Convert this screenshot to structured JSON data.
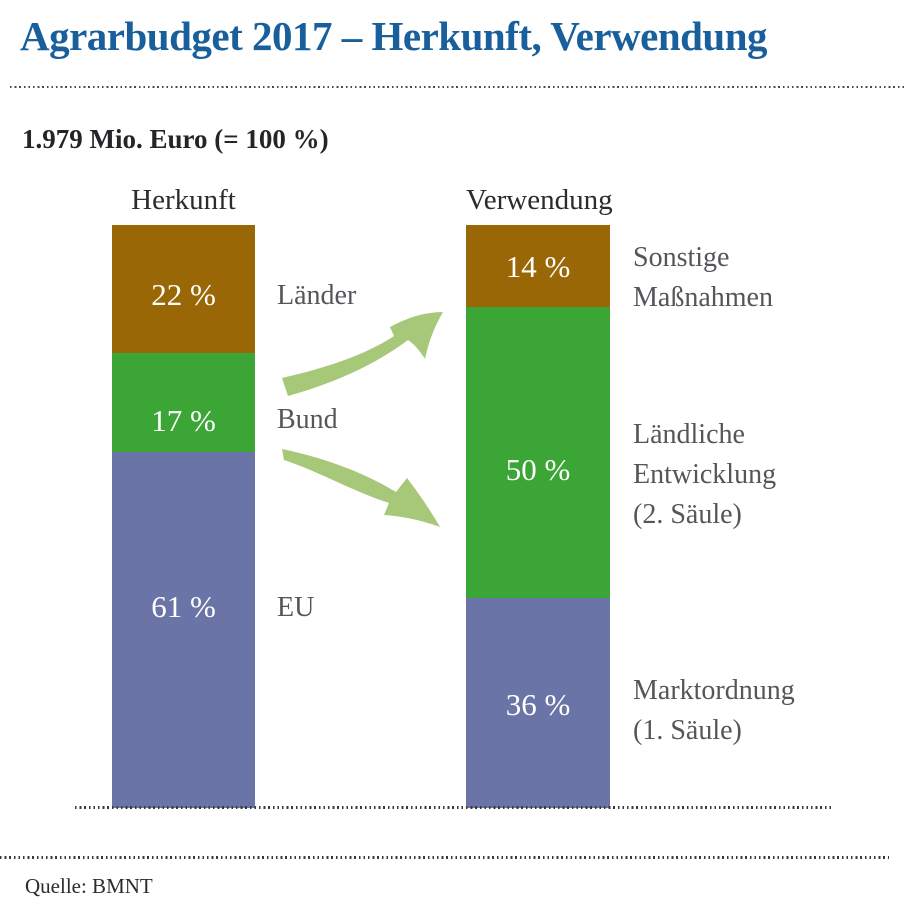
{
  "header": {
    "title": "Agrarbudget 2017 – Herkunft, Verwendung",
    "subtitle": "1.979 Mio. Euro (= 100 %)"
  },
  "footer": {
    "source": "Quelle: BMNT"
  },
  "colors": {
    "title_blue": "#185F9C",
    "segment_brown": "#9A6707",
    "segment_green": "#3BA535",
    "segment_blue": "#6B74A6",
    "arrow_green": "#A6C878",
    "side_label_gray": "#55565A",
    "text_dark": "#242528"
  },
  "chart_data": {
    "type": "bar",
    "subtype": "stacked-percentage-columns",
    "title": "Agrarbudget 2017 – Herkunft, Verwendung",
    "total_label": "1.979 Mio. Euro (= 100 %)",
    "total_mio_euro": 1979,
    "ylim": [
      0,
      100
    ],
    "grid": false,
    "legend_position": "labels-beside-bars",
    "columns": [
      {
        "title": "Herkunft",
        "segments": [
          {
            "label": "Länder",
            "value": 22,
            "display": "22 %",
            "color": "#9A6707"
          },
          {
            "label": "Bund",
            "value": 17,
            "display": "17 %",
            "color": "#3BA535"
          },
          {
            "label": "EU",
            "value": 61,
            "display": "61 %",
            "color": "#6B74A6"
          }
        ]
      },
      {
        "title": "Verwendung",
        "segments": [
          {
            "label": "Sonstige Maßnahmen",
            "value": 14,
            "display": "14 %",
            "color": "#9A6707",
            "label_lines": [
              "Sonstige",
              "Maßnahmen"
            ]
          },
          {
            "label": "Ländliche Entwicklung (2. Säule)",
            "value": 50,
            "display": "50 %",
            "color": "#3BA535",
            "label_lines": [
              "Ländliche",
              "Entwicklung",
              "(2. Säule)"
            ]
          },
          {
            "label": "Marktordnung (1. Säule)",
            "value": 36,
            "display": "36 %",
            "color": "#6B74A6",
            "label_lines": [
              "Marktordnung",
              "(1. Säule)"
            ]
          }
        ]
      }
    ],
    "arrows": [
      {
        "name": "herkunft-to-verwendung-upper",
        "direction": "up-right",
        "color": "#A6C878"
      },
      {
        "name": "herkunft-to-verwendung-lower",
        "direction": "down-right",
        "color": "#A6C878"
      }
    ]
  }
}
